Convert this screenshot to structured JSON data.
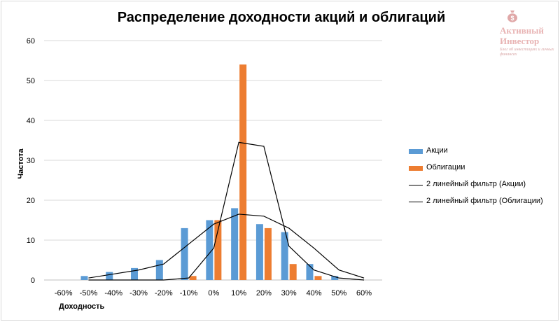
{
  "logo": {
    "line1": "Активный",
    "line2": "Инвестор",
    "tagline": "Блог об инвестициях и личных финансах"
  },
  "chart_data": {
    "type": "bar",
    "title": "Распределение доходности акций и облигаций",
    "xlabel": "Доходность",
    "ylabel": "Частота",
    "categories": [
      "-60%",
      "-50%",
      "-40%",
      "-30%",
      "-20%",
      "-10%",
      "0%",
      "10%",
      "20%",
      "30%",
      "40%",
      "50%",
      "60%"
    ],
    "ylim": [
      0,
      60
    ],
    "yticks": [
      0,
      10,
      20,
      30,
      40,
      50,
      60
    ],
    "grid": true,
    "legend_position": "right",
    "series": [
      {
        "name": "Акции",
        "kind": "bar",
        "color": "#5b9bd5",
        "values": [
          0,
          1,
          2,
          3,
          5,
          13,
          15,
          18,
          14,
          12,
          4,
          1,
          0
        ]
      },
      {
        "name": "Облигации",
        "kind": "bar",
        "color": "#ed7d31",
        "values": [
          0,
          0,
          0,
          0,
          0,
          1,
          15,
          54,
          13,
          4,
          1,
          0,
          0
        ]
      },
      {
        "name": "2 линейный фильтр (Акции)",
        "kind": "line",
        "color": "#000000",
        "values": [
          null,
          0.5,
          1.5,
          2.5,
          4,
          9,
          14,
          16.5,
          16,
          13,
          8,
          2.5,
          0.5
        ]
      },
      {
        "name": "2 линейный фильтр (Облигации)",
        "kind": "line",
        "color": "#000000",
        "values": [
          null,
          0,
          0,
          0,
          0,
          0.5,
          8,
          34.5,
          33.5,
          8.5,
          2.5,
          0.5,
          0
        ]
      }
    ]
  }
}
